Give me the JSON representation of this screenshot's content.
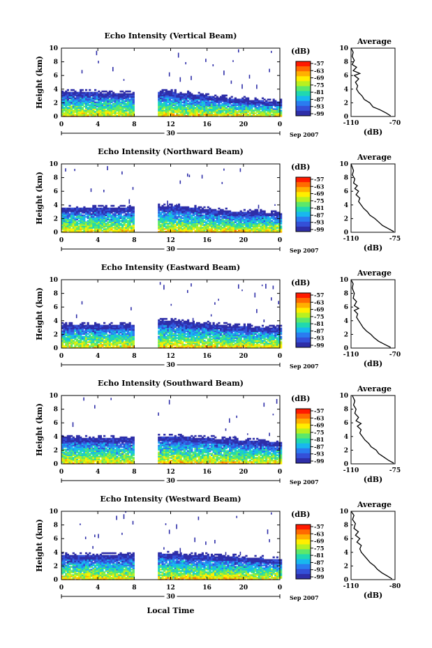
{
  "figure": {
    "xlabel": "Local Time",
    "date_label": "Sep 2007",
    "ylabel": "Height (km)",
    "unit_label": "(dB)",
    "average_title": "Average",
    "average_xlabel": "(dB)"
  },
  "colorbar": {
    "ticks": [
      "-57",
      "-63",
      "-69",
      "-75",
      "-81",
      "-87",
      "-93",
      "-99"
    ],
    "colors": [
      "#ff1a00",
      "#ff6a00",
      "#ffb000",
      "#ffee00",
      "#b8f020",
      "#5ce86a",
      "#20d8b0",
      "#18b8ee",
      "#2a7cf0",
      "#3450d8",
      "#2e2ea8"
    ]
  },
  "chart_data": [
    {
      "type": "heatmap",
      "title": "Echo Intensity (Vertical Beam)",
      "xlabel": "Local Time",
      "ylabel": "Height (km)",
      "xticks": [
        "0",
        "4",
        "8",
        "12",
        "16",
        "20",
        "0"
      ],
      "xlim": [
        0,
        24
      ],
      "yticks": [
        "0",
        "2",
        "4",
        "6",
        "8",
        "10"
      ],
      "ylim": [
        0,
        10
      ],
      "day_label": "30",
      "data_gap": [
        8,
        10.5
      ],
      "top_layer_km": [
        [
          0,
          3.5
        ],
        [
          8,
          3.3
        ],
        [
          11,
          3.6
        ],
        [
          14,
          3.2
        ],
        [
          18,
          2.6
        ],
        [
          22,
          2.2
        ],
        [
          24,
          2.0
        ]
      ],
      "average": {
        "title": "Average",
        "xlabel": "(dB)",
        "xticks": [
          "-110",
          "-70"
        ],
        "xlim": [
          -110,
          -70
        ],
        "yticks": [
          "0",
          "2",
          "4",
          "6",
          "8",
          "10"
        ],
        "profile": [
          [
            -74,
            0.1
          ],
          [
            -78,
            0.5
          ],
          [
            -84,
            1.0
          ],
          [
            -90,
            1.4
          ],
          [
            -93,
            2.0
          ],
          [
            -98,
            2.5
          ],
          [
            -100,
            3.0
          ],
          [
            -103,
            3.5
          ],
          [
            -105,
            4.0
          ],
          [
            -104,
            4.5
          ],
          [
            -106,
            5.0
          ],
          [
            -103,
            5.5
          ],
          [
            -107,
            6.0
          ],
          [
            -102,
            6.3
          ],
          [
            -108,
            6.7
          ],
          [
            -105,
            7.2
          ],
          [
            -109,
            7.6
          ],
          [
            -107,
            8.2
          ],
          [
            -109,
            8.8
          ],
          [
            -108,
            9.4
          ],
          [
            -110,
            10.0
          ]
        ]
      }
    },
    {
      "type": "heatmap",
      "title": "Echo Intensity (Northward Beam)",
      "xlabel": "Local Time",
      "ylabel": "Height (km)",
      "xticks": [
        "0",
        "4",
        "8",
        "12",
        "16",
        "20",
        "0"
      ],
      "xlim": [
        0,
        24
      ],
      "yticks": [
        "0",
        "2",
        "4",
        "6",
        "8",
        "10"
      ],
      "ylim": [
        0,
        10
      ],
      "day_label": "30",
      "data_gap": [
        8,
        10.5
      ],
      "top_layer_km": [
        [
          0,
          3.5
        ],
        [
          8,
          3.4
        ],
        [
          11,
          3.8
        ],
        [
          14,
          3.5
        ],
        [
          18,
          3.0
        ],
        [
          22,
          2.8
        ],
        [
          24,
          2.8
        ]
      ],
      "average": {
        "title": "Average",
        "xlabel": "(dB)",
        "xticks": [
          "-110",
          "-75"
        ],
        "xlim": [
          -110,
          -75
        ],
        "yticks": [
          "0",
          "2",
          "4",
          "6",
          "8",
          "10"
        ],
        "profile": [
          [
            -76,
            0.1
          ],
          [
            -80,
            0.5
          ],
          [
            -85,
            1.0
          ],
          [
            -88,
            1.5
          ],
          [
            -91,
            2.0
          ],
          [
            -95,
            2.5
          ],
          [
            -97,
            3.0
          ],
          [
            -100,
            3.5
          ],
          [
            -102,
            4.0
          ],
          [
            -104,
            4.5
          ],
          [
            -103,
            5.0
          ],
          [
            -106,
            5.5
          ],
          [
            -104,
            6.0
          ],
          [
            -107,
            6.4
          ],
          [
            -105,
            6.8
          ],
          [
            -108,
            7.2
          ],
          [
            -107,
            7.8
          ],
          [
            -109,
            8.4
          ],
          [
            -108,
            9.0
          ],
          [
            -110,
            10.0
          ]
        ]
      }
    },
    {
      "type": "heatmap",
      "title": "Echo Intensity (Eastward Beam)",
      "xlabel": "Local Time",
      "ylabel": "Height (km)",
      "xticks": [
        "0",
        "4",
        "8",
        "12",
        "16",
        "20",
        "0"
      ],
      "xlim": [
        0,
        24
      ],
      "yticks": [
        "0",
        "2",
        "4",
        "6",
        "8",
        "10"
      ],
      "ylim": [
        0,
        10
      ],
      "day_label": "30",
      "data_gap": [
        8,
        10.5
      ],
      "top_layer_km": [
        [
          0,
          3.4
        ],
        [
          8,
          3.3
        ],
        [
          11,
          4.0
        ],
        [
          14,
          3.6
        ],
        [
          18,
          3.2
        ],
        [
          22,
          2.9
        ],
        [
          24,
          2.8
        ]
      ],
      "average": {
        "title": "Average",
        "xlabel": "(dB)",
        "xticks": [
          "-110",
          "-70"
        ],
        "xlim": [
          -110,
          -70
        ],
        "yticks": [
          "0",
          "2",
          "4",
          "6",
          "8",
          "10"
        ],
        "profile": [
          [
            -74,
            0.1
          ],
          [
            -79,
            0.5
          ],
          [
            -85,
            1.0
          ],
          [
            -89,
            1.5
          ],
          [
            -92,
            2.0
          ],
          [
            -96,
            2.5
          ],
          [
            -99,
            3.0
          ],
          [
            -101,
            3.5
          ],
          [
            -103,
            4.0
          ],
          [
            -105,
            4.5
          ],
          [
            -104,
            5.0
          ],
          [
            -107,
            5.5
          ],
          [
            -103,
            5.8
          ],
          [
            -107,
            6.2
          ],
          [
            -105,
            6.8
          ],
          [
            -108,
            7.3
          ],
          [
            -107,
            8.0
          ],
          [
            -109,
            8.8
          ],
          [
            -108,
            9.4
          ],
          [
            -110,
            10.0
          ]
        ]
      }
    },
    {
      "type": "heatmap",
      "title": "Echo Intensity (Southward Beam)",
      "xlabel": "Local Time",
      "ylabel": "Height (km)",
      "xticks": [
        "0",
        "4",
        "8",
        "12",
        "16",
        "20",
        "0"
      ],
      "xlim": [
        0,
        24
      ],
      "yticks": [
        "0",
        "2",
        "4",
        "6",
        "8",
        "10"
      ],
      "ylim": [
        0,
        10
      ],
      "day_label": "30",
      "data_gap": [
        8,
        10.5
      ],
      "top_layer_km": [
        [
          0,
          3.8
        ],
        [
          8,
          3.6
        ],
        [
          11,
          4.0
        ],
        [
          14,
          3.8
        ],
        [
          18,
          3.5
        ],
        [
          22,
          3.2
        ],
        [
          24,
          3.0
        ]
      ],
      "average": {
        "title": "Average",
        "xlabel": "(dB)",
        "xticks": [
          "-110",
          "-75"
        ],
        "xlim": [
          -110,
          -75
        ],
        "yticks": [
          "0",
          "2",
          "4",
          "6",
          "8",
          "10"
        ],
        "profile": [
          [
            -76,
            0.1
          ],
          [
            -80,
            0.5
          ],
          [
            -84,
            1.0
          ],
          [
            -88,
            1.5
          ],
          [
            -90,
            2.0
          ],
          [
            -94,
            2.5
          ],
          [
            -96,
            3.0
          ],
          [
            -99,
            3.5
          ],
          [
            -101,
            4.0
          ],
          [
            -103,
            4.5
          ],
          [
            -102,
            5.0
          ],
          [
            -105,
            5.5
          ],
          [
            -102,
            5.9
          ],
          [
            -106,
            6.3
          ],
          [
            -104,
            6.8
          ],
          [
            -107,
            7.4
          ],
          [
            -106,
            8.0
          ],
          [
            -108,
            8.6
          ],
          [
            -107,
            9.2
          ],
          [
            -109,
            10.0
          ]
        ]
      }
    },
    {
      "type": "heatmap",
      "title": "Echo Intensity (Westward Beam)",
      "xlabel": "Local Time",
      "ylabel": "Height (km)",
      "xticks": [
        "0",
        "4",
        "8",
        "12",
        "16",
        "20",
        "0"
      ],
      "xlim": [
        0,
        24
      ],
      "yticks": [
        "0",
        "2",
        "4",
        "6",
        "8",
        "10"
      ],
      "ylim": [
        0,
        10
      ],
      "day_label": "30",
      "data_gap": [
        8,
        10.5
      ],
      "top_layer_km": [
        [
          0,
          3.5
        ],
        [
          8,
          3.4
        ],
        [
          11,
          3.8
        ],
        [
          14,
          3.5
        ],
        [
          18,
          3.3
        ],
        [
          22,
          3.0
        ],
        [
          24,
          2.8
        ]
      ],
      "average": {
        "title": "Average",
        "xlabel": "(dB)",
        "xticks": [
          "-110",
          "-80"
        ],
        "xlim": [
          -110,
          -80
        ],
        "yticks": [
          "0",
          "2",
          "4",
          "6",
          "8",
          "10"
        ],
        "profile": [
          [
            -82,
            0.1
          ],
          [
            -85,
            0.5
          ],
          [
            -89,
            1.0
          ],
          [
            -92,
            1.5
          ],
          [
            -94,
            2.0
          ],
          [
            -97,
            2.5
          ],
          [
            -99,
            3.0
          ],
          [
            -101,
            3.5
          ],
          [
            -103,
            4.0
          ],
          [
            -104,
            4.5
          ],
          [
            -103,
            5.0
          ],
          [
            -106,
            5.5
          ],
          [
            -104,
            6.0
          ],
          [
            -107,
            6.5
          ],
          [
            -105,
            7.0
          ],
          [
            -108,
            7.5
          ],
          [
            -107,
            8.2
          ],
          [
            -109,
            8.8
          ],
          [
            -108,
            9.4
          ],
          [
            -110,
            10.0
          ]
        ]
      }
    }
  ]
}
